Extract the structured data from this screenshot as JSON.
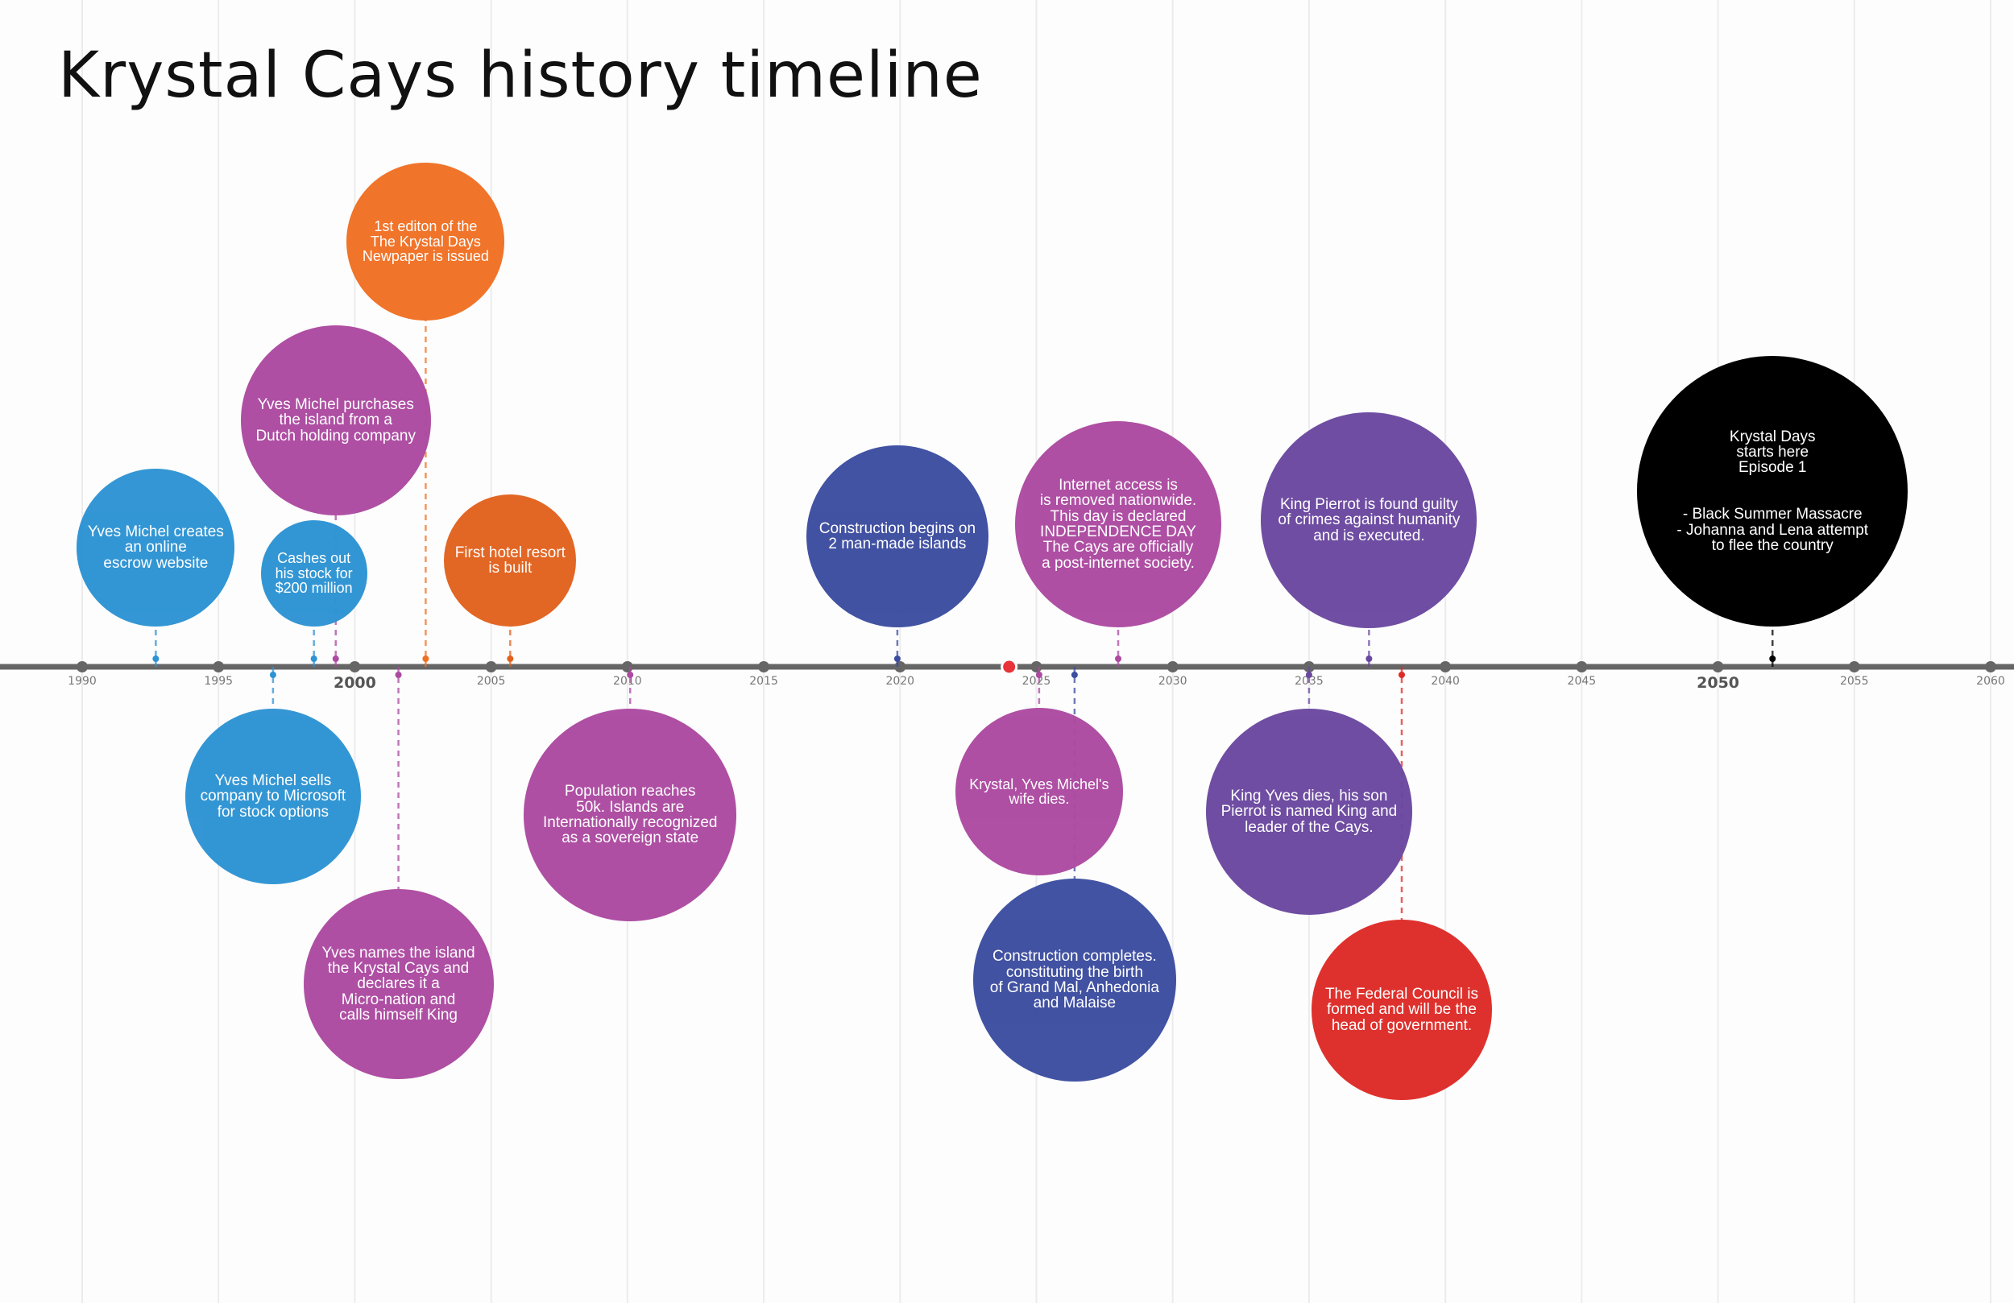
{
  "page": {
    "title": "Krystal Cays history timeline"
  },
  "chart_data": {
    "type": "timeline",
    "title": "Krystal Cays history timeline",
    "xlim": [
      1990,
      2060
    ],
    "ticks": [
      {
        "year": 1990,
        "label": "1990",
        "major": false
      },
      {
        "year": 1995,
        "label": "1995",
        "major": false
      },
      {
        "year": 2000,
        "label": "2000",
        "major": true
      },
      {
        "year": 2005,
        "label": "2005",
        "major": false
      },
      {
        "year": 2010,
        "label": "2010",
        "major": false
      },
      {
        "year": 2015,
        "label": "2015",
        "major": false
      },
      {
        "year": 2020,
        "label": "2020",
        "major": false
      },
      {
        "year": 2025,
        "label": "2025",
        "major": false
      },
      {
        "year": 2030,
        "label": "2030",
        "major": false
      },
      {
        "year": 2035,
        "label": "2035",
        "major": false
      },
      {
        "year": 2040,
        "label": "2040",
        "major": false
      },
      {
        "year": 2045,
        "label": "2045",
        "major": false
      },
      {
        "year": 2050,
        "label": "2050",
        "major": true
      },
      {
        "year": 2055,
        "label": "2055",
        "major": false
      },
      {
        "year": 2060,
        "label": "2060",
        "major": false
      }
    ],
    "today_marker": {
      "year": 2024,
      "color": "#e8333a"
    },
    "events": [
      {
        "id": "escrow",
        "year": 1992.7,
        "side": "above",
        "color": "#2d93d3",
        "text": "Yves Michel creates\nan online\nescrow website"
      },
      {
        "id": "sells",
        "year": 1997,
        "side": "below",
        "color": "#2d93d3",
        "text": "Yves Michel sells\ncompany to Microsoft\nfor stock options"
      },
      {
        "id": "cashes",
        "year": 1998.5,
        "side": "above",
        "color": "#2d93d3",
        "text": "Cashes out\nhis stock for\n$200 million"
      },
      {
        "id": "purchases",
        "year": 1999.3,
        "side": "above",
        "color": "#ac4aa1",
        "text": "Yves Michel purchases\nthe island from a\nDutch holding company"
      },
      {
        "id": "names",
        "year": 2001.6,
        "side": "below",
        "color": "#ac4aa1",
        "text": "Yves names the island\nthe Krystal Cays and\ndeclares it a\nMicro-nation and\ncalls himself King"
      },
      {
        "id": "newspaper",
        "year": 2002.6,
        "side": "above",
        "color": "#f07023",
        "text": "1st editon of the\nThe Krystal Days\nNewpaper is issued"
      },
      {
        "id": "hotel",
        "year": 2005.7,
        "side": "above",
        "color": "#e2621d",
        "text": "First hotel resort\nis built"
      },
      {
        "id": "population",
        "year": 2010.1,
        "side": "below",
        "color": "#ac4aa1",
        "text": "Population reaches\n50k. Islands are\nInternationally recognized\nas a sovereign state"
      },
      {
        "id": "construction-begins",
        "year": 2019.9,
        "side": "above",
        "color": "#3c4da0",
        "text": "Construction begins on\n2 man-made islands"
      },
      {
        "id": "krystal-dies",
        "year": 2025.1,
        "side": "below",
        "color": "#ac4aa1",
        "text": "Krystal, Yves Michel's\nwife dies."
      },
      {
        "id": "construction-completes",
        "year": 2026.4,
        "side": "below",
        "color": "#3c4da0",
        "text": "Construction completes.\nconstituting the  birth\nof Grand Mal, Anhedonia\nand Malaise"
      },
      {
        "id": "internet",
        "year": 2028,
        "side": "above",
        "color": "#ac4aa1",
        "text": "Internet access is\nis removed nationwide.\nThis day is declared\nINDEPENDENCE DAY\nThe Cays are officially\na post-internet society."
      },
      {
        "id": "king-yves-dies",
        "year": 2035,
        "side": "below",
        "color": "#6b48a0",
        "text": "King Yves dies, his son\nPierrot is named King and\nleader of the Cays."
      },
      {
        "id": "pierrot-executed",
        "year": 2037.2,
        "side": "above",
        "color": "#6b48a0",
        "text": "King Pierrot is found guilty\nof crimes against humanity\nand is executed."
      },
      {
        "id": "federal-council",
        "year": 2038.4,
        "side": "below",
        "color": "#dd2b27",
        "text": "The Federal Council is\nformed and will be the\nhead of government."
      },
      {
        "id": "episode-1",
        "year": 2052,
        "side": "above",
        "color": "#000000",
        "text": "Krystal Days\nstarts here\nEpisode 1\n\n\n- Black Summer Massacre\n- Johanna and Lena attempt\nto flee the country"
      }
    ]
  }
}
